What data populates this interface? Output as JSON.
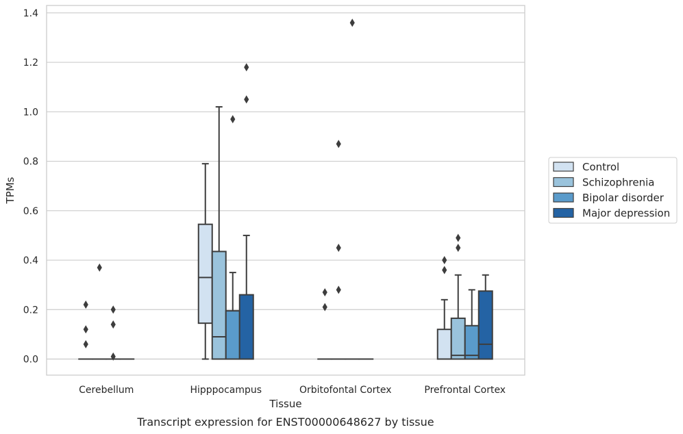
{
  "chart_data": {
    "type": "box",
    "title": "",
    "caption": "Transcript expression for ENST00000648627 by tissue",
    "xlabel": "Tissue",
    "ylabel": "TPMs",
    "ylim": [
      -0.065,
      1.43
    ],
    "yticks": [
      0.0,
      0.2,
      0.4,
      0.6,
      0.8,
      1.0,
      1.2,
      1.4
    ],
    "ytick_labels": [
      "0.0",
      "0.2",
      "0.4",
      "0.6",
      "0.8",
      "1.0",
      "1.2",
      "1.4"
    ],
    "grid": true,
    "legend_position": "right",
    "categories": [
      "Cerebellum",
      "Hipppocampus",
      "Orbitofontal Cortex",
      "Prefrontal Cortex"
    ],
    "series": [
      {
        "name": "Control",
        "color": "#d2e2f1",
        "boxes": [
          {
            "q1": 0.0,
            "median": 0.0,
            "q3": 0.0,
            "whislo": 0.0,
            "whishi": 0.0,
            "fliers": [
              0.22,
              0.12,
              0.06
            ]
          },
          {
            "q1": 0.145,
            "median": 0.33,
            "q3": 0.545,
            "whislo": 0.0,
            "whishi": 0.79,
            "fliers": []
          },
          {
            "q1": 0.0,
            "median": 0.0,
            "q3": 0.0,
            "whislo": 0.0,
            "whishi": 0.0,
            "fliers": [
              0.27,
              0.21
            ]
          },
          {
            "q1": 0.0,
            "median": 0.0,
            "q3": 0.12,
            "whislo": 0.0,
            "whishi": 0.24,
            "fliers": [
              0.4,
              0.36
            ]
          }
        ]
      },
      {
        "name": "Schizophrenia",
        "color": "#9ac3dc",
        "boxes": [
          {
            "q1": 0.0,
            "median": 0.0,
            "q3": 0.0,
            "whislo": 0.0,
            "whishi": 0.0,
            "fliers": [
              0.37
            ]
          },
          {
            "q1": 0.0,
            "median": 0.09,
            "q3": 0.435,
            "whislo": 0.0,
            "whishi": 1.02,
            "fliers": []
          },
          {
            "q1": 0.0,
            "median": 0.0,
            "q3": 0.0,
            "whislo": 0.0,
            "whishi": 0.0,
            "fliers": [
              0.87,
              0.45,
              0.28
            ]
          },
          {
            "q1": 0.0,
            "median": 0.015,
            "q3": 0.165,
            "whislo": 0.0,
            "whishi": 0.34,
            "fliers": [
              0.49,
              0.45
            ]
          }
        ]
      },
      {
        "name": "Bipolar disorder",
        "color": "#5a9bcb",
        "boxes": [
          {
            "q1": 0.0,
            "median": 0.0,
            "q3": 0.0,
            "whislo": 0.0,
            "whishi": 0.0,
            "fliers": [
              0.2,
              0.14,
              0.01
            ]
          },
          {
            "q1": 0.0,
            "median": 0.0,
            "q3": 0.195,
            "whislo": 0.0,
            "whishi": 0.35,
            "fliers": [
              0.97
            ]
          },
          {
            "q1": 0.0,
            "median": 0.0,
            "q3": 0.0,
            "whislo": 0.0,
            "whishi": 0.0,
            "fliers": [
              1.36
            ]
          },
          {
            "q1": 0.0,
            "median": 0.015,
            "q3": 0.135,
            "whislo": 0.0,
            "whishi": 0.28,
            "fliers": []
          }
        ]
      },
      {
        "name": "Major depression",
        "color": "#2463a4",
        "boxes": [
          {
            "q1": 0.0,
            "median": 0.0,
            "q3": 0.0,
            "whislo": 0.0,
            "whishi": 0.0,
            "fliers": []
          },
          {
            "q1": 0.0,
            "median": 0.0,
            "q3": 0.26,
            "whislo": 0.0,
            "whishi": 0.5,
            "fliers": [
              1.18,
              1.05
            ]
          },
          {
            "q1": 0.0,
            "median": 0.0,
            "q3": 0.0,
            "whislo": 0.0,
            "whishi": 0.0,
            "fliers": []
          },
          {
            "q1": 0.0,
            "median": 0.06,
            "q3": 0.275,
            "whislo": 0.0,
            "whishi": 0.34,
            "fliers": []
          }
        ]
      }
    ]
  }
}
